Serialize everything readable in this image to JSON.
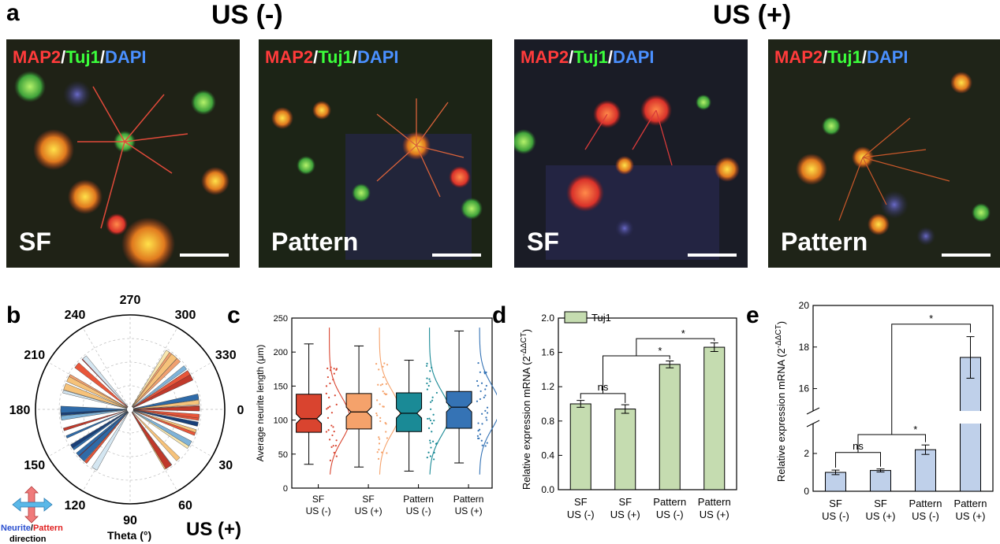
{
  "panel_a": {
    "letter": "a",
    "group_left": "US (-)",
    "group_right": "US (+)",
    "stain": {
      "map2": "MAP2",
      "tuj1": "Tuj1",
      "dapi": "DAPI",
      "sep": "/"
    },
    "images": [
      {
        "condition": "SF"
      },
      {
        "condition": "Pattern"
      },
      {
        "condition": "SF"
      },
      {
        "condition": "Pattern"
      }
    ]
  },
  "panel_b": {
    "letter": "b",
    "angle_labels": [
      "270",
      "300",
      "330",
      "0",
      "30",
      "60",
      "90",
      "120",
      "150",
      "180",
      "210",
      "240"
    ],
    "theta_label": "Theta (°)",
    "legend_neurite": "Neurite",
    "legend_slash": "/",
    "legend_pattern": "Pattern",
    "legend_direction": "direction",
    "us_label": "US (+)"
  },
  "panel_c": {
    "letter": "c",
    "ylabel": "Average neurite length (μm)",
    "yticks": [
      "0",
      "50",
      "100",
      "150",
      "200",
      "250"
    ],
    "groups": [
      {
        "l1": "SF",
        "l2": "US (-)"
      },
      {
        "l1": "SF",
        "l2": "US (+)"
      },
      {
        "l1": "Pattern",
        "l2": "US (-)"
      },
      {
        "l1": "Pattern",
        "l2": "US (+)"
      }
    ]
  },
  "panel_d": {
    "letter": "d",
    "legend": "Tuj1",
    "ylabel": "Relative expression mRNA (2",
    "ylabel_sup": "-ΔΔCT",
    "ylabel_end": ")",
    "yticks": [
      "0.0",
      "0.4",
      "0.8",
      "1.2",
      "1.6",
      "2.0"
    ],
    "groups": [
      {
        "l1": "SF",
        "l2": "US (-)"
      },
      {
        "l1": "SF",
        "l2": "US (+)"
      },
      {
        "l1": "Pattern",
        "l2": "US (-)"
      },
      {
        "l1": "Pattern",
        "l2": "US (+)"
      }
    ],
    "sig": [
      "ns",
      "*",
      "*"
    ]
  },
  "panel_e": {
    "letter": "e",
    "ylabel": "Relative expression mRNA (2",
    "ylabel_sup": "-ΔΔCT",
    "ylabel_end": ")",
    "yticks_low": [
      "0",
      "2"
    ],
    "yticks_high": [
      "16",
      "18",
      "20"
    ],
    "groups": [
      {
        "l1": "SF",
        "l2": "US (-)"
      },
      {
        "l1": "SF",
        "l2": "US (+)"
      },
      {
        "l1": "Pattern",
        "l2": "US (-)"
      },
      {
        "l1": "Pattern",
        "l2": "US (+)"
      }
    ],
    "sig": [
      "ns",
      "*",
      "*"
    ]
  },
  "chart_data": [
    {
      "type": "box",
      "panel": "c",
      "ylabel": "Average neurite length (μm)",
      "ylim": [
        0,
        250
      ],
      "categories": [
        "SF US (-)",
        "SF US (+)",
        "Pattern US (-)",
        "Pattern US (+)"
      ],
      "colors": [
        "#d9442f",
        "#f5a26b",
        "#1a8a96",
        "#3573b5"
      ],
      "boxes": [
        {
          "min": 35,
          "q1": 82,
          "median": 102,
          "q3": 138,
          "max": 212
        },
        {
          "min": 31,
          "q1": 87,
          "median": 112,
          "q3": 139,
          "max": 209
        },
        {
          "min": 25,
          "q1": 83,
          "median": 110,
          "q3": 140,
          "max": 188
        },
        {
          "min": 37,
          "q1": 88,
          "median": 119,
          "q3": 142,
          "max": 231
        }
      ]
    },
    {
      "type": "bar",
      "panel": "d",
      "series": [
        {
          "name": "Tuj1",
          "values": [
            1.0,
            0.94,
            1.46,
            1.66
          ],
          "errors": [
            0.04,
            0.05,
            0.04,
            0.05
          ]
        }
      ],
      "categories": [
        "SF US (-)",
        "SF US (+)",
        "Pattern US (-)",
        "Pattern US (+)"
      ],
      "ylim": [
        0,
        2.0
      ],
      "color": "#c5dcb0"
    },
    {
      "type": "bar",
      "panel": "e",
      "categories": [
        "SF US (-)",
        "SF US (+)",
        "Pattern US (-)",
        "Pattern US (+)"
      ],
      "values": [
        1.0,
        1.1,
        2.2,
        17.5
      ],
      "errors": [
        0.12,
        0.08,
        0.25,
        1.0
      ],
      "axis_break": [
        3.5,
        15
      ],
      "color": "#bfd0ea"
    }
  ]
}
